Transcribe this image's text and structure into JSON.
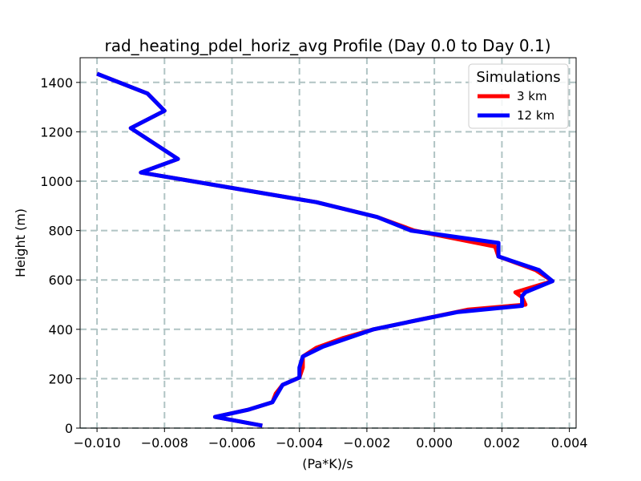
{
  "chart_data": {
    "type": "line",
    "title": "rad_heating_pdel_horiz_avg Profile (Day 0.0 to Day 0.1)",
    "xlabel": "(Pa*K)/s",
    "ylabel": "Height (m)",
    "xlim": [
      -0.0105,
      0.0042
    ],
    "ylim": [
      0,
      1500
    ],
    "xticks": [
      -0.01,
      -0.008,
      -0.006,
      -0.004,
      -0.002,
      0.0,
      0.002,
      0.004
    ],
    "xtick_labels": [
      "−0.010",
      "−0.008",
      "−0.006",
      "−0.004",
      "−0.002",
      "0.000",
      "0.002",
      "0.004"
    ],
    "yticks": [
      0,
      200,
      400,
      600,
      800,
      1000,
      1200,
      1400
    ],
    "ytick_labels": [
      "0",
      "200",
      "400",
      "600",
      "800",
      "1000",
      "1200",
      "1400"
    ],
    "grid": true,
    "legend": {
      "title": "Simulations",
      "position": "top-right"
    },
    "series": [
      {
        "name": "3 km",
        "color": "#ff0000",
        "points": [
          [
            -0.0051,
            10
          ],
          [
            -0.0065,
            45
          ],
          [
            -0.0055,
            75
          ],
          [
            -0.0048,
            105
          ],
          [
            -0.0047,
            140
          ],
          [
            -0.0045,
            175
          ],
          [
            -0.004,
            205
          ],
          [
            -0.0039,
            245
          ],
          [
            -0.0039,
            290
          ],
          [
            -0.0035,
            325
          ],
          [
            -0.0027,
            365
          ],
          [
            -0.0018,
            400
          ],
          [
            -0.0004,
            440
          ],
          [
            0.001,
            480
          ],
          [
            0.0027,
            500
          ],
          [
            0.0026,
            530
          ],
          [
            0.0024,
            550
          ],
          [
            0.0035,
            595
          ],
          [
            0.003,
            640
          ],
          [
            0.0019,
            695
          ],
          [
            0.0018,
            735
          ],
          [
            -0.0006,
            800
          ],
          [
            -0.0017,
            855
          ],
          [
            -0.0035,
            915
          ],
          [
            -0.0087,
            1035
          ],
          [
            -0.0076,
            1090
          ],
          [
            -0.009,
            1215
          ],
          [
            -0.008,
            1285
          ],
          [
            -0.0085,
            1355
          ],
          [
            -0.01,
            1435
          ]
        ]
      },
      {
        "name": "12 km",
        "color": "#0000ff",
        "points": [
          [
            -0.0051,
            10
          ],
          [
            -0.0065,
            45
          ],
          [
            -0.0055,
            75
          ],
          [
            -0.0048,
            105
          ],
          [
            -0.0045,
            175
          ],
          [
            -0.004,
            205
          ],
          [
            -0.004,
            245
          ],
          [
            -0.0039,
            290
          ],
          [
            -0.0033,
            330
          ],
          [
            -0.0018,
            400
          ],
          [
            -0.0004,
            440
          ],
          [
            0.0007,
            470
          ],
          [
            0.0026,
            495
          ],
          [
            0.0026,
            535
          ],
          [
            0.0027,
            550
          ],
          [
            0.0035,
            595
          ],
          [
            0.0031,
            640
          ],
          [
            0.0019,
            695
          ],
          [
            0.0019,
            750
          ],
          [
            -0.0007,
            800
          ],
          [
            -0.0017,
            855
          ],
          [
            -0.0035,
            915
          ],
          [
            -0.0087,
            1035
          ],
          [
            -0.0076,
            1090
          ],
          [
            -0.009,
            1215
          ],
          [
            -0.008,
            1285
          ],
          [
            -0.0085,
            1355
          ],
          [
            -0.01,
            1435
          ]
        ]
      }
    ]
  }
}
